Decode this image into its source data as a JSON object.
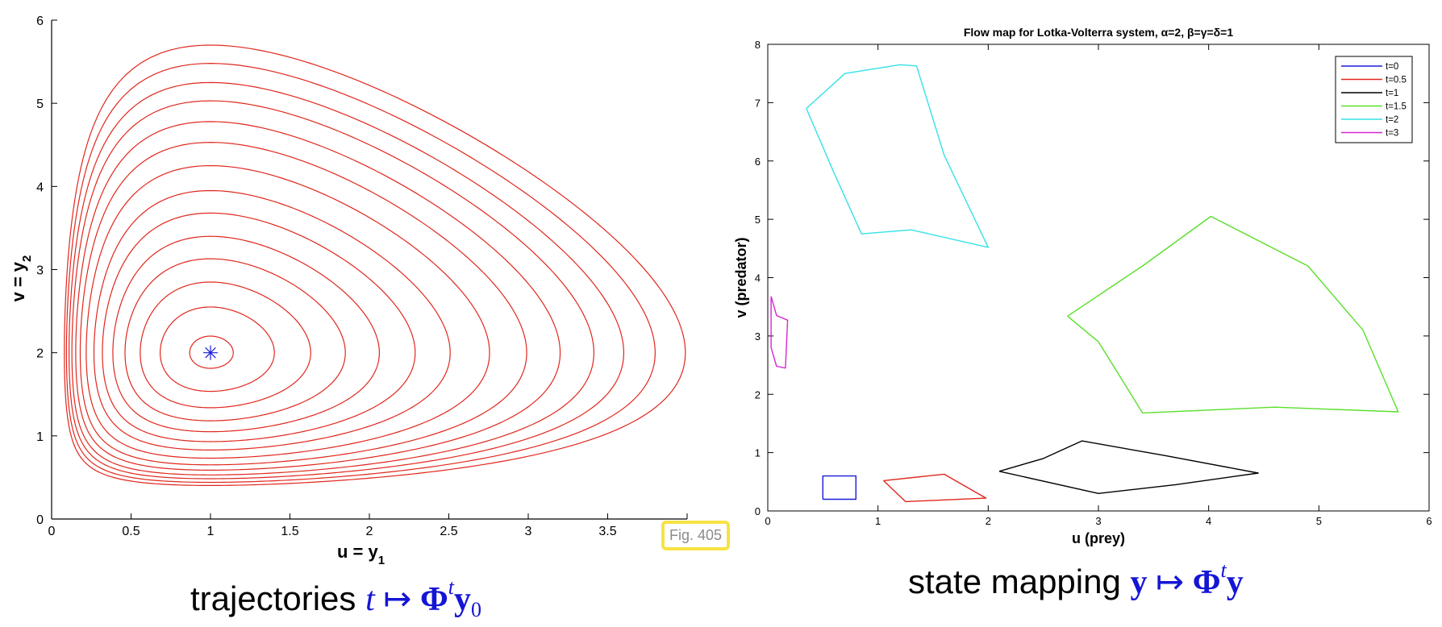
{
  "chart_data": [
    {
      "type": "line",
      "title": "",
      "xlabel": "u = y",
      "xlabel_sub": "1",
      "ylabel": "v = y",
      "ylabel_sub": "2",
      "xlim": [
        0,
        4
      ],
      "ylim": [
        0,
        6
      ],
      "xticks": [
        "0",
        "0.5",
        "1",
        "1.5",
        "2",
        "2.5",
        "3",
        "3.5",
        "4"
      ],
      "yticks": [
        "0",
        "1",
        "2",
        "3",
        "4",
        "5",
        "6"
      ],
      "equilibrium": {
        "x": 1,
        "y": 2,
        "marker": "asterisk",
        "color": "#1a1adb"
      },
      "curve_color": "#e0271d",
      "orbits_y_max": [
        2.2,
        2.55,
        2.85,
        3.13,
        3.4,
        3.68,
        3.95,
        4.25,
        4.53,
        4.78,
        5.03,
        5.25,
        5.48,
        5.7
      ],
      "orbit_x_max": 4.0,
      "grid": false
    },
    {
      "type": "line",
      "title": "Flow map for Lotka-Volterra system, α=2, β=γ=δ=1",
      "xlabel": "u (prey)",
      "ylabel": "v (predator)",
      "xlim": [
        0,
        6
      ],
      "ylim": [
        0,
        8
      ],
      "xticks": [
        "0",
        "1",
        "2",
        "3",
        "4",
        "5",
        "6"
      ],
      "yticks": [
        "0",
        "1",
        "2",
        "3",
        "4",
        "5",
        "6",
        "7",
        "8"
      ],
      "grid": false,
      "legend_position": "top-right",
      "series": [
        {
          "name": "t=0",
          "color": "#1a1adb",
          "points": [
            [
              0.5,
              0.2
            ],
            [
              0.8,
              0.2
            ],
            [
              0.8,
              0.6
            ],
            [
              0.5,
              0.6
            ],
            [
              0.5,
              0.2
            ]
          ]
        },
        {
          "name": "t=0.5",
          "color": "#e0271d",
          "points": [
            [
              1.05,
              0.52
            ],
            [
              1.6,
              0.63
            ],
            [
              1.98,
              0.22
            ],
            [
              1.25,
              0.16
            ],
            [
              1.05,
              0.52
            ]
          ]
        },
        {
          "name": "t=1",
          "color": "#000000",
          "points": [
            [
              2.1,
              0.68
            ],
            [
              2.5,
              0.9
            ],
            [
              2.85,
              1.2
            ],
            [
              3.6,
              0.95
            ],
            [
              4.45,
              0.65
            ],
            [
              3.7,
              0.45
            ],
            [
              3.0,
              0.3
            ],
            [
              2.1,
              0.68
            ]
          ]
        },
        {
          "name": "t=1.5",
          "color": "#58e02a",
          "points": [
            [
              2.72,
              3.34
            ],
            [
              3.4,
              4.2
            ],
            [
              4.02,
              5.05
            ],
            [
              4.9,
              4.2
            ],
            [
              5.4,
              3.1
            ],
            [
              5.72,
              1.7
            ],
            [
              4.6,
              1.78
            ],
            [
              3.4,
              1.68
            ],
            [
              3.0,
              2.9
            ],
            [
              2.72,
              3.34
            ]
          ]
        },
        {
          "name": "t=2",
          "color": "#34e2e8",
          "points": [
            [
              0.35,
              6.9
            ],
            [
              0.7,
              7.5
            ],
            [
              1.2,
              7.65
            ],
            [
              1.35,
              7.63
            ],
            [
              1.6,
              6.1
            ],
            [
              2.0,
              4.52
            ],
            [
              1.3,
              4.82
            ],
            [
              0.85,
              4.75
            ],
            [
              0.6,
              5.8
            ],
            [
              0.35,
              6.9
            ]
          ]
        },
        {
          "name": "t=3",
          "color": "#d626d6",
          "points": [
            [
              0.03,
              3.68
            ],
            [
              0.08,
              3.35
            ],
            [
              0.18,
              3.27
            ],
            [
              0.16,
              2.45
            ],
            [
              0.08,
              2.48
            ],
            [
              0.03,
              2.8
            ],
            [
              0.03,
              3.68
            ]
          ]
        }
      ]
    }
  ],
  "captions": {
    "left_text": "trajectories ",
    "left_math_t": "t",
    "left_math_map": " ↦ ",
    "left_math_phi": "Φ",
    "left_math_sup": "t",
    "left_math_y": "y",
    "left_math_sub": "0",
    "right_text": "state mapping ",
    "right_math_y": "y",
    "right_math_map": " ↦ ",
    "right_math_phi": "Φ",
    "right_math_sup": "t",
    "right_math_y2": "y"
  },
  "badge": "Fig. 405"
}
